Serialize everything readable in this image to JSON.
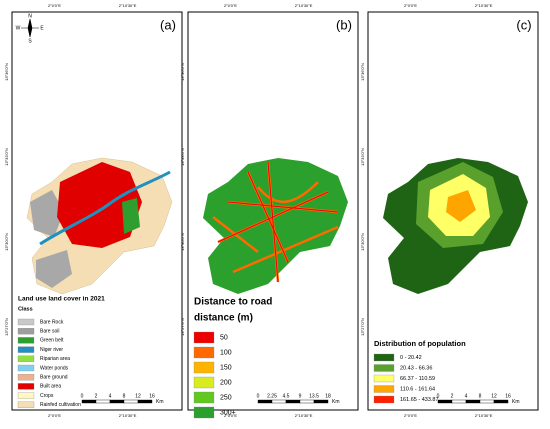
{
  "graticule": {
    "top": [
      "2°0'0\"E",
      "2°10'30\"E"
    ],
    "left": [
      "13°36'0\"N",
      "13°33'0\"N",
      "13°30'0\"N",
      "13°27'0\"N"
    ]
  },
  "north": {
    "n": "N",
    "s": "S",
    "e": "E",
    "w": "W"
  },
  "panels": [
    {
      "label": "(a)",
      "legend": {
        "title": "Land use land cover in 2021",
        "subtitle": "Class",
        "items": [
          {
            "label": "Bare Rock",
            "color": "#c8c8c8"
          },
          {
            "label": "Bare soil",
            "color": "#9e9e9e"
          },
          {
            "label": "Green belt",
            "color": "#2e9e2e"
          },
          {
            "label": "Niger river",
            "color": "#2090c0"
          },
          {
            "label": "Riparian area",
            "color": "#90e040"
          },
          {
            "label": "Water ponds",
            "color": "#80d0f0"
          },
          {
            "label": "Bare ground",
            "color": "#f0b090"
          },
          {
            "label": "Built area",
            "color": "#e00000"
          },
          {
            "label": "Crops",
            "color": "#fff8c0"
          },
          {
            "label": "Rainfed cultivation",
            "color": "#f5deb3"
          }
        ]
      },
      "scale": {
        "ticks": [
          "0",
          "2",
          "4",
          "8",
          "12",
          "16"
        ],
        "unit": "Km"
      }
    },
    {
      "label": "(b)",
      "legend": {
        "title": "Distance to road",
        "subtitle": "distance (m)",
        "items": [
          {
            "label": "50",
            "color": "#ee0000"
          },
          {
            "label": "100",
            "color": "#ff6a00"
          },
          {
            "label": "150",
            "color": "#ffb400"
          },
          {
            "label": "200",
            "color": "#d8ec20"
          },
          {
            "label": "250",
            "color": "#60c820"
          },
          {
            "label": "300+",
            "color": "#2ca02c"
          }
        ]
      },
      "scale": {
        "ticks": [
          "0",
          "2.25",
          "4.5",
          "9",
          "13.5",
          "18"
        ],
        "unit": "Km"
      }
    },
    {
      "label": "(c)",
      "legend": {
        "title": "Distribution of population",
        "items": [
          {
            "label": "0 - 20.42",
            "color": "#1e6414"
          },
          {
            "label": "20.43 - 66.36",
            "color": "#5aa02c"
          },
          {
            "label": "66.37 - 110.59",
            "color": "#ffff66"
          },
          {
            "label": "110.6 - 161.64",
            "color": "#ffa500"
          },
          {
            "label": "161.65 - 433.87",
            "color": "#ff2000"
          }
        ]
      },
      "scale": {
        "ticks": [
          "0",
          "2",
          "4",
          "8",
          "12",
          "16"
        ],
        "unit": "Km"
      }
    }
  ]
}
